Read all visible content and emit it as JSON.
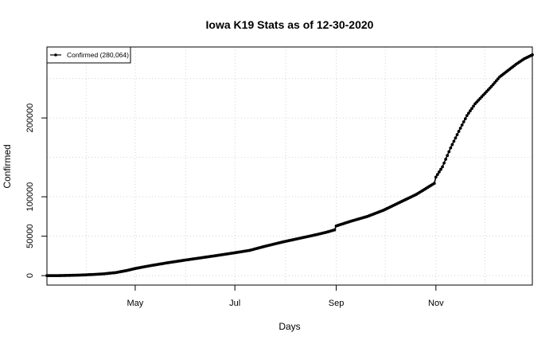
{
  "chart_data": {
    "type": "line",
    "title": "Iowa K19 Stats as of 12-30-2020",
    "xlabel": "Days",
    "ylabel": "Confirmed",
    "x_range": [
      "2020-03-08",
      "2020-12-30"
    ],
    "ylim": [
      -12000,
      290000
    ],
    "grid": true,
    "legend_position": "top-left",
    "x_ticks": [
      {
        "date": "2020-05-01",
        "label": "May"
      },
      {
        "date": "2020-07-01",
        "label": "Jul"
      },
      {
        "date": "2020-09-01",
        "label": "Sep"
      },
      {
        "date": "2020-11-01",
        "label": "Nov"
      }
    ],
    "y_ticks": [
      {
        "value": 0,
        "label": "0"
      },
      {
        "value": 50000,
        "label": "50000"
      },
      {
        "value": 100000,
        "label": "100000"
      },
      {
        "value": 200000,
        "label": "200000"
      }
    ],
    "series": [
      {
        "name": "Confirmed (280,064)",
        "color": "#000000",
        "x": [
          "2020-03-08",
          "2020-03-15",
          "2020-03-22",
          "2020-03-29",
          "2020-04-05",
          "2020-04-12",
          "2020-04-19",
          "2020-04-26",
          "2020-05-01",
          "2020-05-10",
          "2020-05-20",
          "2020-05-31",
          "2020-06-10",
          "2020-06-20",
          "2020-07-01",
          "2020-07-10",
          "2020-07-20",
          "2020-07-31",
          "2020-08-10",
          "2020-08-20",
          "2020-08-26",
          "2020-08-31",
          "2020-09-01",
          "2020-09-10",
          "2020-09-20",
          "2020-09-30",
          "2020-10-10",
          "2020-10-20",
          "2020-10-31",
          "2020-11-01",
          "2020-11-05",
          "2020-11-10",
          "2020-11-15",
          "2020-11-20",
          "2020-11-25",
          "2020-11-30",
          "2020-12-05",
          "2020-12-10",
          "2020-12-15",
          "2020-12-20",
          "2020-12-25",
          "2020-12-30"
        ],
        "y": [
          0,
          0,
          300,
          700,
          1400,
          2300,
          3800,
          6500,
          9000,
          12500,
          16000,
          19500,
          22500,
          25500,
          29000,
          32000,
          37500,
          43000,
          47500,
          52000,
          55000,
          58000,
          63000,
          69000,
          75000,
          83000,
          93000,
          103000,
          117000,
          125000,
          138000,
          162000,
          183000,
          203000,
          218000,
          229000,
          240000,
          252000,
          260000,
          268000,
          275000,
          280064
        ]
      }
    ]
  }
}
